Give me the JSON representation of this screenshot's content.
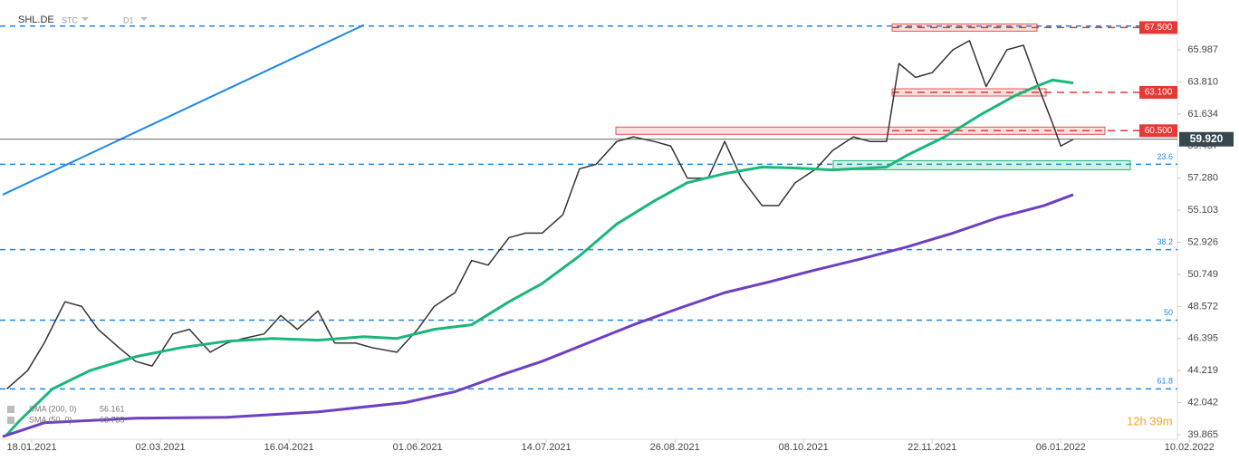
{
  "chart_data": {
    "type": "line",
    "symbol": "SHL.DE",
    "source": "STC",
    "interval": "D1",
    "timer": "12h 39m",
    "xlim": [
      -7,
      282
    ],
    "ylim": [
      39.56,
      69.37
    ],
    "xticks": [
      {
        "value": 0,
        "label": "18.01.2021"
      },
      {
        "value": 31,
        "label": "02.03.2021"
      },
      {
        "value": 62,
        "label": "16.04.2021"
      },
      {
        "value": 93,
        "label": "01.06.2021"
      },
      {
        "value": 124,
        "label": "14.07.2021"
      },
      {
        "value": 155,
        "label": "26.08.2021"
      },
      {
        "value": 186,
        "label": "08.10.2021"
      },
      {
        "value": 217,
        "label": "22.11.2021"
      },
      {
        "value": 248,
        "label": "06.01.2022"
      },
      {
        "value": 279,
        "label": "10.02.2022"
      }
    ],
    "yticks": [
      65.987,
      {
        "value": 63.81,
        "label": "63.810"
      },
      61.634,
      59.457,
      {
        "value": 57.28,
        "label": "57.280"
      },
      55.103,
      52.926,
      50.749,
      48.572,
      46.395,
      44.219,
      42.042,
      39.865
    ],
    "series": [
      {
        "color": "#333333",
        "x": [
          -6,
          -1,
          3,
          8,
          12,
          16,
          21,
          25,
          29,
          34,
          38,
          43,
          47,
          51,
          56,
          60,
          64,
          69,
          73,
          78,
          82,
          88,
          93,
          97,
          102,
          106,
          110,
          115,
          119,
          123,
          128,
          132,
          136,
          141,
          145,
          150,
          154,
          158,
          163,
          167,
          171,
          176,
          180,
          184,
          189,
          193,
          198,
          202,
          206,
          209,
          213,
          217,
          222,
          226,
          230,
          235,
          239,
          243,
          246,
          248,
          251
        ],
        "values": [
          42.98,
          44.22,
          46.09,
          48.89,
          48.58,
          47.02,
          45.78,
          44.85,
          44.53,
          46.71,
          47.02,
          45.47,
          46.09,
          46.4,
          46.71,
          47.96,
          47.02,
          48.27,
          46.09,
          46.09,
          45.78,
          45.47,
          47.02,
          48.58,
          49.51,
          51.69,
          51.38,
          53.24,
          53.55,
          53.55,
          54.8,
          57.91,
          58.22,
          59.77,
          60.08,
          59.77,
          59.46,
          57.28,
          57.28,
          59.77,
          57.28,
          55.42,
          55.42,
          56.97,
          57.91,
          59.15,
          60.08,
          59.77,
          59.77,
          65.06,
          64.12,
          64.44,
          65.99,
          66.61,
          63.5,
          65.99,
          66.3,
          63.19,
          61.01,
          59.46,
          59.92
        ]
      },
      {
        "name": "SMA (50, 0)",
        "legend_value": 63.735,
        "color": "#19b77a",
        "x": [
          -6,
          -3,
          5,
          14,
          25,
          36,
          47,
          58,
          69,
          80,
          88,
          97,
          106,
          115,
          123,
          132,
          141,
          150,
          158,
          167,
          176,
          184,
          193,
          202,
          206,
          211,
          220,
          229,
          237,
          242,
          246,
          251
        ],
        "values": [
          39.87,
          40.8,
          42.98,
          44.22,
          45.16,
          45.78,
          46.21,
          46.4,
          46.28,
          46.52,
          46.4,
          47.02,
          47.33,
          48.89,
          50.13,
          52.0,
          54.17,
          55.73,
          56.97,
          57.59,
          58.03,
          57.97,
          57.84,
          57.97,
          58.03,
          58.84,
          60.08,
          61.64,
          62.88,
          63.5,
          63.94,
          63.74
        ]
      },
      {
        "name": "SMA (200, 0)",
        "legend_value": 56.161,
        "color": "#6c3fc4",
        "x": [
          -7,
          3,
          25,
          47,
          69,
          90,
          102,
          113,
          123,
          134,
          145,
          156,
          167,
          178,
          189,
          200,
          211,
          222,
          233,
          244,
          251
        ],
        "values": [
          39.74,
          40.68,
          40.99,
          41.05,
          41.42,
          42.05,
          42.79,
          43.91,
          44.85,
          46.09,
          47.33,
          48.45,
          49.51,
          50.26,
          51.06,
          51.81,
          52.62,
          53.55,
          54.61,
          55.42,
          56.16
        ]
      }
    ],
    "trendline": {
      "color": "#1e88e5",
      "x": [
        -7,
        80
      ],
      "values": [
        56.16,
        67.67
      ]
    },
    "levels": [
      {
        "value": 67.5,
        "label": "67.500"
      },
      {
        "value": 63.1,
        "label": "63.100"
      },
      {
        "value": 60.5,
        "label": "60.500"
      }
    ],
    "fib_levels": [
      {
        "value": 67.6
      },
      {
        "value": 58.22,
        "ratio": 23.6
      },
      {
        "value": 52.43,
        "ratio": 38.2
      },
      {
        "value": 47.64,
        "ratio": 50.0
      },
      {
        "value": 42.98,
        "ratio": 61.8
      }
    ],
    "last_price": {
      "value": 59.92,
      "label": "59.920"
    }
  }
}
